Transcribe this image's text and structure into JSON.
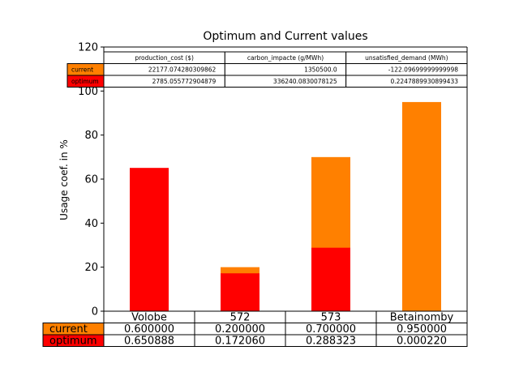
{
  "chart_data": {
    "type": "bar",
    "title": "Optimum and Current values",
    "ylabel": "Usage coef. in %",
    "xlabel": "",
    "ylim": [
      0,
      120
    ],
    "yticks": [
      0,
      20,
      40,
      60,
      80,
      100,
      120
    ],
    "categories": [
      "Volobe",
      "572",
      "573",
      "Betainomby"
    ],
    "stacking": "overlaid",
    "series": [
      {
        "name": "current",
        "color": "#ff8000",
        "values": [
          60,
          20,
          70,
          95
        ]
      },
      {
        "name": "optimum",
        "color": "#ff0000",
        "values": [
          65.0888,
          17.206,
          28.8323,
          0.022
        ]
      }
    ],
    "top_table": {
      "columns": [
        "production_cost ($)",
        "carbon_impacte (g/MWh)",
        "unsatisfied_demand (MWh)"
      ],
      "rows": [
        {
          "label": "current",
          "color": "#ff8000",
          "values": [
            "22177.074280309862",
            "1350500.0",
            "-122.09699999999998"
          ]
        },
        {
          "label": "optimum",
          "color": "#ff0000",
          "values": [
            "2785.055772904879",
            "336240.0830078125",
            "0.2247889930899433"
          ]
        }
      ]
    },
    "bottom_table": {
      "rows": [
        {
          "label": "current",
          "color": "#ff8000",
          "values": [
            "0.600000",
            "0.200000",
            "0.700000",
            "0.950000"
          ]
        },
        {
          "label": "optimum",
          "color": "#ff0000",
          "values": [
            "0.650888",
            "0.172060",
            "0.288323",
            "0.000220"
          ]
        }
      ]
    }
  }
}
